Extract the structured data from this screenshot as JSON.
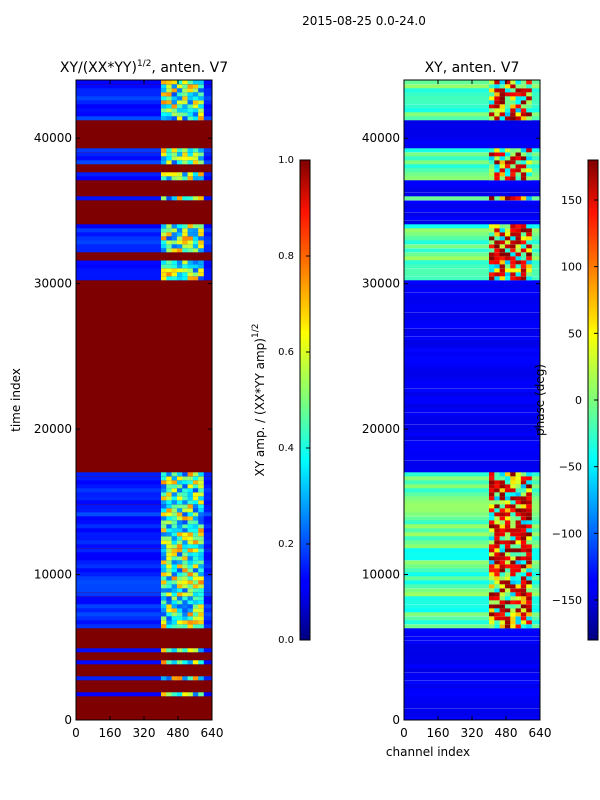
{
  "figure_title": "2015-08-25 0.0-24.0",
  "colors": {
    "jet_low": "#00007f",
    "jet_high": "#7f0000",
    "band": "#7f0000"
  },
  "chart_data": [
    {
      "type": "heatmap",
      "title": "XY/(XX*YY)",
      "title_exponent": "1/2",
      "title_suffix": ", anten. V7",
      "xlabel": "",
      "ylabel": "time index",
      "xlim": [
        0,
        640
      ],
      "ylim": [
        0,
        44000
      ],
      "xticks": [
        0,
        160,
        320,
        480,
        640
      ],
      "yticks": [
        0,
        10000,
        20000,
        30000,
        40000
      ],
      "colorbar": {
        "label": "XY amp. / (XX*YY amp)",
        "label_exponent": "1/2",
        "range": [
          0.0,
          1.0
        ],
        "ticks": [
          "0.0",
          "0.2",
          "0.4",
          "0.6",
          "0.8",
          "1.0"
        ]
      },
      "saturated_time_ranges": [
        [
          0,
          1500
        ],
        [
          1700,
          2600
        ],
        [
          2800,
          3800
        ],
        [
          4000,
          4500
        ],
        [
          4700,
          6200
        ],
        [
          17000,
          30000
        ],
        [
          31400,
          32000
        ],
        [
          34000,
          35500
        ],
        [
          36000,
          37000
        ],
        [
          37500,
          38000
        ],
        [
          39200,
          41000
        ]
      ],
      "active_channel_range": [
        400,
        600
      ]
    },
    {
      "type": "heatmap",
      "title": "XY, anten. V7",
      "xlabel": "channel index",
      "ylabel": "",
      "xlim": [
        0,
        640
      ],
      "ylim": [
        0,
        44000
      ],
      "xticks": [
        0,
        160,
        320,
        480,
        640
      ],
      "yticks": [
        0,
        10000,
        20000,
        30000,
        40000
      ],
      "colorbar": {
        "label": "phase (deg)",
        "range": [
          -180,
          180
        ],
        "ticks": [
          "150",
          "100",
          "50",
          "0",
          "−50",
          "−100",
          "−150"
        ],
        "tick_values": [
          150,
          100,
          50,
          0,
          -50,
          -100,
          -150
        ]
      },
      "flat_time_ranges": [
        [
          0,
          6200
        ],
        [
          17000,
          30000
        ],
        [
          34000,
          35500
        ],
        [
          36000,
          37000
        ],
        [
          39200,
          41000
        ]
      ],
      "active_channel_range": [
        400,
        600
      ]
    }
  ]
}
